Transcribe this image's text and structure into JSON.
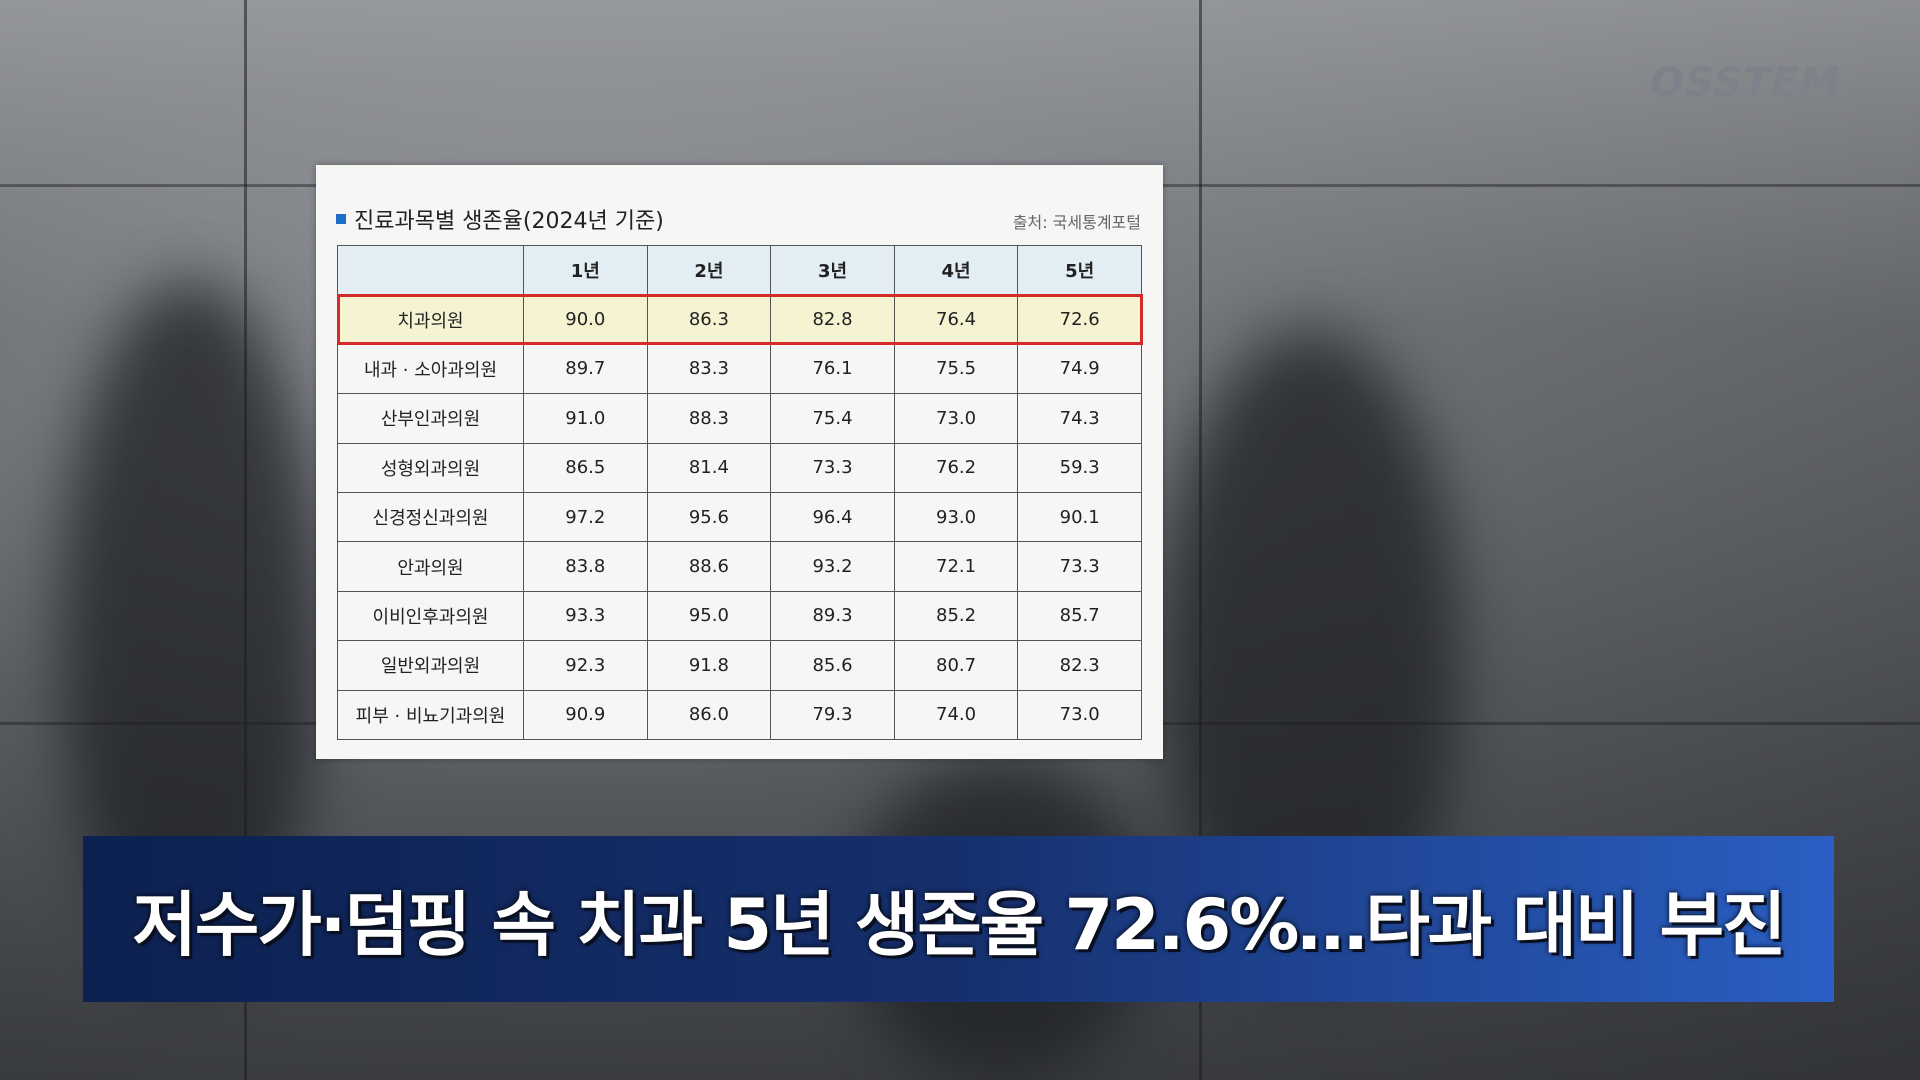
{
  "logo": "OSSTEM",
  "table": {
    "title": "진료과목별 생존율(2024년 기준)",
    "source": "출처: 국세통계포털",
    "headers": [
      "",
      "1년",
      "2년",
      "3년",
      "4년",
      "5년"
    ],
    "highlight_color": "#d42a2a",
    "rows": [
      [
        "치과의원",
        "90.0",
        "86.3",
        "82.8",
        "76.4",
        "72.6"
      ],
      [
        "내과 · 소아과의원",
        "89.7",
        "83.3",
        "76.1",
        "75.5",
        "74.9"
      ],
      [
        "산부인과의원",
        "91.0",
        "88.3",
        "75.4",
        "73.0",
        "74.3"
      ],
      [
        "성형외과의원",
        "86.5",
        "81.4",
        "73.3",
        "76.2",
        "59.3"
      ],
      [
        "신경정신과의원",
        "97.2",
        "95.6",
        "96.4",
        "93.0",
        "90.1"
      ],
      [
        "안과의원",
        "83.8",
        "88.6",
        "93.2",
        "72.1",
        "73.3"
      ],
      [
        "이비인후과의원",
        "93.3",
        "95.0",
        "89.3",
        "85.2",
        "85.7"
      ],
      [
        "일반외과의원",
        "92.3",
        "91.8",
        "85.6",
        "80.7",
        "82.3"
      ],
      [
        "피부 · 비뇨기과의원",
        "90.9",
        "86.0",
        "79.3",
        "74.0",
        "73.0"
      ]
    ]
  },
  "headline": "저수가·덤핑 속 치과 5년 생존율 72.6%…타과 대비 부진"
}
